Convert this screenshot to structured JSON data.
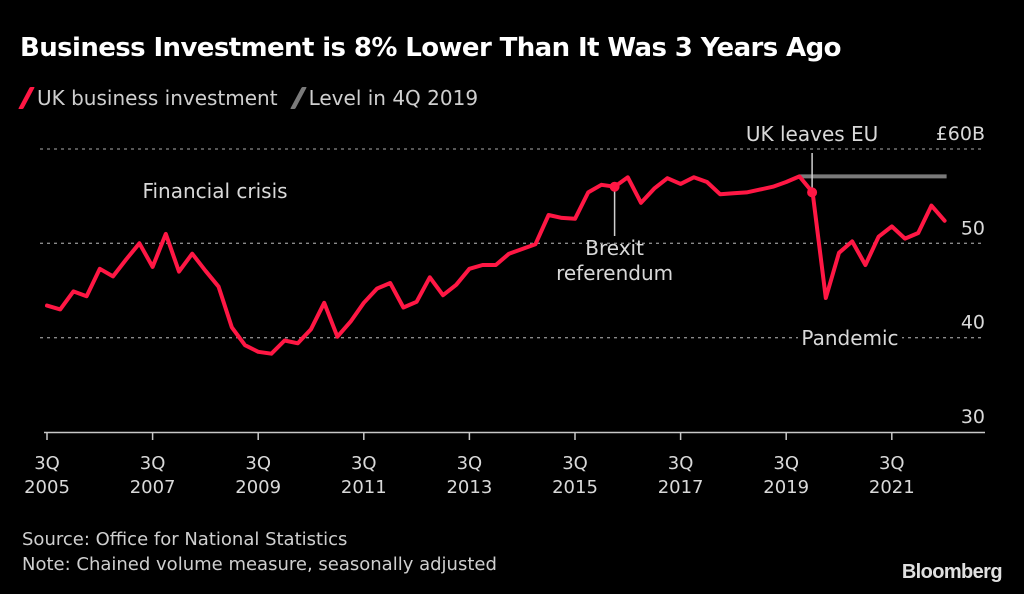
{
  "title": "Business Investment is 8% Lower Than It Was 3 Years Ago",
  "legend": [
    {
      "label": "UK business investment",
      "color": "#ff1744"
    },
    {
      "label": "Level in 4Q 2019",
      "color": "#7a7a7a"
    }
  ],
  "footer": {
    "source": "Source: Office for National Statistics",
    "note": "Note: Chained volume measure, seasonally adjusted",
    "brand": "Bloomberg"
  },
  "colors": {
    "background": "#000000",
    "line": "#ff1744",
    "level": "#7a7a7a",
    "grid": "#8a8a8a",
    "text": "#d9d9d9"
  },
  "chart_data": {
    "type": "line",
    "title": "Business Investment is 8% Lower Than It Was 3 Years Ago",
    "xlabel": "",
    "ylabel": "",
    "ylim": [
      30,
      60
    ],
    "yticks": [
      {
        "value": 60,
        "label": "£60B"
      },
      {
        "value": 50,
        "label": "50"
      },
      {
        "value": 40,
        "label": "40"
      },
      {
        "value": 30,
        "label": "30"
      }
    ],
    "grid": true,
    "legend_position": "top-left",
    "xticks": [
      {
        "index": 0,
        "line1": "3Q",
        "line2": "2005"
      },
      {
        "index": 8,
        "line1": "3Q",
        "line2": "2007"
      },
      {
        "index": 16,
        "line1": "3Q",
        "line2": "2009"
      },
      {
        "index": 24,
        "line1": "3Q",
        "line2": "2011"
      },
      {
        "index": 32,
        "line1": "3Q",
        "line2": "2013"
      },
      {
        "index": 40,
        "line1": "3Q",
        "line2": "2015"
      },
      {
        "index": 48,
        "line1": "3Q",
        "line2": "2017"
      },
      {
        "index": 56,
        "line1": "3Q",
        "line2": "2019"
      },
      {
        "index": 64,
        "line1": "3Q",
        "line2": "2021"
      }
    ],
    "x_start": "3Q 2005",
    "x_end": "3Q 2022",
    "series": [
      {
        "name": "UK business investment",
        "values": [
          43.4,
          43.0,
          44.9,
          44.4,
          47.3,
          46.5,
          48.3,
          50.0,
          47.5,
          51.0,
          47.0,
          48.9,
          47.1,
          45.4,
          41.1,
          39.2,
          38.5,
          38.3,
          39.7,
          39.4,
          40.9,
          43.7,
          40.1,
          41.7,
          43.7,
          45.2,
          45.8,
          43.2,
          43.8,
          46.4,
          44.5,
          45.6,
          47.3,
          47.7,
          47.7,
          48.9,
          49.4,
          49.9,
          53.0,
          52.7,
          52.6,
          55.4,
          56.2,
          56.0,
          57.0,
          54.3,
          55.8,
          56.9,
          56.3,
          57.0,
          56.5,
          55.2,
          55.3,
          55.4,
          55.7,
          56.0,
          56.5,
          57.1,
          55.4,
          44.2,
          49.0,
          50.2,
          47.7,
          50.7,
          51.8,
          50.5,
          51.1,
          54.0,
          52.4
        ]
      },
      {
        "name": "Level in 4Q 2019",
        "value": 57.1,
        "from_index": 57,
        "to_index": 68
      }
    ],
    "annotations": [
      {
        "text": "Financial crisis",
        "index": 13,
        "value": 58.3
      },
      {
        "text": "Brexit\nreferendum",
        "lines": [
          "Brexit",
          "referendum"
        ],
        "index": 43,
        "marker": true,
        "pointer": "below"
      },
      {
        "text": "UK leaves EU",
        "index": 58,
        "marker": true,
        "pointer": "above"
      },
      {
        "text": "Pandemic",
        "index": 59,
        "value": 40.0
      }
    ]
  }
}
